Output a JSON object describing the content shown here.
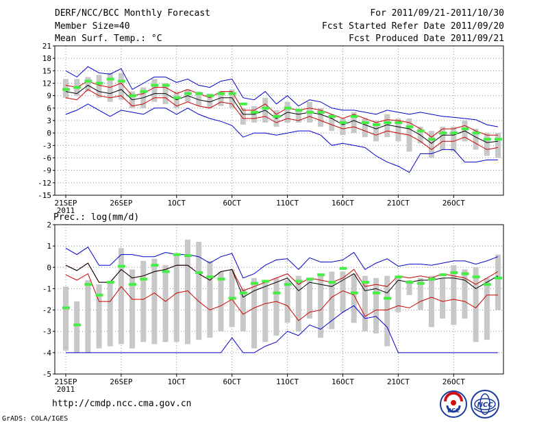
{
  "header": {
    "title": "DERF/NCC/BCC Monthly Forecast",
    "member_size": "Member Size=40",
    "variable1": "Mean Surf. Temp.: °C",
    "period": "For 2011/09/21-2011/10/30",
    "fcst_started": "Fcst Started Refer Date 2011/09/20",
    "fcst_produced": "Fcst Produced Date 2011/09/21"
  },
  "footer": {
    "url": "http://cmdp.ncc.cma.gov.cn",
    "credit": "GrADS: COLA/IGES",
    "logo_left": "BCC",
    "logo_right": "NCC"
  },
  "colors": {
    "envelope": "#0000cc",
    "spread": "#cc0000",
    "mean": "#000000",
    "box": "#c8c8c8",
    "obs": "#44ee44",
    "grid": "#888888"
  },
  "chart_data": [
    {
      "type": "line",
      "title": "Mean Surf. Temp.: °C",
      "ylim": [
        -15,
        21
      ],
      "yticks": [
        "21",
        "18",
        "15",
        "12",
        "9",
        "6",
        "3",
        "0",
        "-3",
        "-6",
        "-9",
        "-12",
        "-15"
      ],
      "x_tick_labels": [
        "21SEP",
        "26SEP",
        "1OCT",
        "6OCT",
        "11OCT",
        "16OCT",
        "21OCT",
        "26OCT"
      ],
      "x_tick_days": [
        0,
        5,
        10,
        15,
        20,
        25,
        30,
        35
      ],
      "x_year_label": "2011",
      "days": 40,
      "series": [
        {
          "name": "max",
          "values": [
            15,
            13.5,
            16,
            14.5,
            14.2,
            15.5,
            10.5,
            12,
            13.5,
            13.5,
            12.2,
            13,
            11.5,
            11,
            12.5,
            13,
            8.5,
            8,
            10,
            7,
            9,
            6.5,
            8,
            7.5,
            6,
            5.5,
            5.5,
            5,
            4.5,
            5.5,
            5,
            4.5,
            5,
            4.5,
            4,
            3.8,
            3.5,
            3.2,
            2,
            1.5
          ]
        },
        {
          "name": "upper",
          "values": [
            11.5,
            11,
            12.5,
            11.5,
            11,
            12,
            9,
            9.5,
            11,
            11,
            9.5,
            10.5,
            9.5,
            8.5,
            10,
            10,
            5.5,
            5.5,
            7,
            4.5,
            6,
            5.5,
            6,
            5.5,
            4.5,
            3.5,
            4.5,
            3.5,
            2.5,
            3.2,
            3,
            2.5,
            1,
            -1,
            1,
            1,
            1.8,
            0.5,
            -0.5,
            -0.5
          ]
        },
        {
          "name": "mean",
          "values": [
            10,
            9.5,
            11.5,
            10,
            9.5,
            10.5,
            8,
            8.5,
            9.5,
            9.5,
            8,
            9,
            8,
            7.5,
            8.5,
            8.5,
            4.5,
            4.5,
            5.5,
            3.5,
            5,
            4.5,
            5,
            4.5,
            3.5,
            2,
            3,
            2,
            1,
            2,
            1.5,
            1,
            -0.5,
            -2.5,
            -0.5,
            -0.5,
            0.5,
            -1,
            -2.3,
            -2
          ]
        },
        {
          "name": "lower",
          "values": [
            8.5,
            8,
            10.5,
            9,
            8.5,
            9,
            6.5,
            7,
            8.5,
            8.5,
            6.5,
            7.5,
            6.5,
            6,
            7.5,
            7,
            3.5,
            3.5,
            4,
            2.5,
            3.5,
            3,
            4,
            3,
            2,
            1,
            1.5,
            0.5,
            -0.5,
            0.5,
            0,
            -0.5,
            -2,
            -4,
            -2,
            -2,
            -1,
            -2.5,
            -4,
            -3.5
          ]
        },
        {
          "name": "min",
          "values": [
            4.5,
            5.5,
            7,
            5.5,
            4,
            5.5,
            5,
            4.5,
            6,
            6,
            4.5,
            6,
            4.5,
            3.5,
            2.8,
            1.8,
            -1,
            0,
            0,
            -0.5,
            0,
            0.5,
            0.5,
            -0.5,
            -3,
            -2.5,
            -3,
            -3.5,
            -5.5,
            -7,
            -8,
            -9.5,
            -5,
            -5,
            -4,
            -4,
            -7,
            -7,
            -6.5,
            -6.5
          ]
        },
        {
          "name": "box_top",
          "values": [
            13,
            13,
            13.5,
            14,
            14.5,
            14.5,
            10,
            11,
            13,
            12,
            10,
            10.5,
            10,
            9.5,
            10,
            10.5,
            6,
            6.5,
            8.5,
            5.5,
            7.5,
            5.5,
            7.5,
            6,
            4.5,
            3.5,
            5,
            3.5,
            3,
            4.5,
            3.5,
            3.5,
            1.5,
            0.5,
            1.5,
            1.5,
            3,
            1,
            0,
            0
          ]
        },
        {
          "name": "box_bottom",
          "values": [
            8.5,
            9,
            10,
            8.5,
            7.5,
            8,
            6,
            6,
            7.5,
            7,
            6,
            7.5,
            6.5,
            6,
            6.5,
            6,
            2,
            2.5,
            2.5,
            1.5,
            2.5,
            2.5,
            2.5,
            1.5,
            0.5,
            -0.5,
            0,
            -1,
            -2,
            -1,
            -2,
            -4.5,
            -2.5,
            -6,
            -4,
            -4.5,
            -2,
            -4,
            -5.5,
            -6
          ]
        },
        {
          "name": "observed",
          "values": [
            10.5,
            11,
            12.5,
            12,
            13,
            12.5,
            9,
            10,
            11.5,
            11.5,
            8.5,
            9.5,
            9.5,
            9,
            9.5,
            9.5,
            7,
            5,
            6,
            4,
            6,
            5.5,
            5,
            5,
            4,
            2.5,
            4,
            2.5,
            2,
            2.5,
            2.5,
            1.5,
            0.5,
            -1.5,
            0,
            0,
            1,
            0,
            -1.5,
            -1.5
          ]
        }
      ]
    },
    {
      "type": "line",
      "title": "Prec.: log(mm/d)",
      "ylim": [
        -5,
        2
      ],
      "yticks": [
        "2",
        "1",
        "0",
        "-1",
        "-2",
        "-3",
        "-4",
        "-5"
      ],
      "x_tick_labels": [
        "21SEP",
        "26SEP",
        "1OCT",
        "6OCT",
        "11OCT",
        "16OCT",
        "21OCT",
        "26OCT"
      ],
      "x_tick_days": [
        0,
        5,
        10,
        15,
        20,
        25,
        30,
        35
      ],
      "x_year_label": "2011",
      "days": 40,
      "series": [
        {
          "name": "max",
          "values": [
            0.9,
            0.6,
            0.95,
            0.1,
            0.1,
            0.6,
            0.6,
            0.5,
            0.5,
            0.7,
            0.6,
            0.6,
            0.5,
            0.2,
            0.5,
            0.65,
            -0.5,
            -0.3,
            0.1,
            0.35,
            0.4,
            -0.1,
            0.45,
            0.25,
            0.25,
            0.35,
            0.7,
            -0.1,
            0.2,
            0.4,
            0.05,
            0.15,
            0.15,
            0.1,
            0.2,
            0.3,
            0.3,
            0.15,
            0.3,
            0.5
          ]
        },
        {
          "name": "upper",
          "values": [
            0.1,
            -0.15,
            0.2,
            -0.7,
            -0.7,
            -0.1,
            -0.5,
            -0.4,
            -0.2,
            -0.1,
            0.1,
            0.1,
            -0.3,
            -0.6,
            -0.2,
            -0.1,
            -1.1,
            -0.9,
            -0.7,
            -0.5,
            -0.3,
            -0.8,
            -0.5,
            -0.6,
            -0.7,
            -0.5,
            -0.1,
            -0.9,
            -0.8,
            -0.9,
            -0.4,
            -0.5,
            -0.4,
            -0.5,
            -0.3,
            -0.4,
            -0.5,
            -0.8,
            -0.5,
            -0.2
          ]
        },
        {
          "name": "mean",
          "values": [
            0.1,
            -0.15,
            0.2,
            -0.7,
            -0.7,
            -0.1,
            -0.5,
            -0.4,
            -0.2,
            -0.1,
            0.1,
            0.1,
            -0.3,
            -0.6,
            -0.2,
            -0.1,
            -1.4,
            -1.1,
            -0.9,
            -0.7,
            -0.5,
            -1.1,
            -0.7,
            -0.8,
            -0.9,
            -0.6,
            -0.3,
            -1.1,
            -1.0,
            -1.2,
            -0.6,
            -0.7,
            -0.6,
            -0.6,
            -0.5,
            -0.5,
            -0.6,
            -1.0,
            -0.7,
            -0.4
          ]
        },
        {
          "name": "lower",
          "values": [
            -0.35,
            -0.6,
            -0.3,
            -1.6,
            -1.6,
            -0.9,
            -1.5,
            -1.5,
            -1.2,
            -1.6,
            -1.2,
            -1.1,
            -1.6,
            -2.0,
            -1.8,
            -1.5,
            -2.2,
            -1.9,
            -1.7,
            -1.6,
            -1.8,
            -2.5,
            -2.1,
            -2.0,
            -1.4,
            -1.1,
            -1.3,
            -2.3,
            -2.0,
            -2.0,
            -1.8,
            -1.9,
            -1.6,
            -1.4,
            -1.6,
            -1.5,
            -1.6,
            -1.9,
            -1.3,
            -1.3
          ]
        },
        {
          "name": "min",
          "values": [
            -4,
            -4,
            -4,
            -4,
            -4,
            -4,
            -4,
            -4,
            -4,
            -4,
            -4,
            -4,
            -4,
            -4,
            -4,
            -3.3,
            -4,
            -4,
            -3.7,
            -3.5,
            -3.0,
            -3.2,
            -2.7,
            -2.9,
            -2.5,
            -2.1,
            -1.8,
            -2.4,
            -2.3,
            -2.8,
            -4,
            -4,
            -4,
            -4,
            -4,
            -4,
            -4,
            -4,
            -4,
            -4
          ]
        },
        {
          "name": "box_top",
          "values": [
            -0.9,
            -1.6,
            -0.6,
            -0.8,
            -0.7,
            0.9,
            -0.1,
            0.3,
            0.4,
            0.1,
            0.6,
            1.3,
            1.2,
            0.3,
            -0.2,
            -0.1,
            -1.0,
            -0.5,
            -0.7,
            -0.5,
            -0.6,
            -0.4,
            -0.5,
            -0.4,
            -0.2,
            -0.2,
            -0.3,
            -0.4,
            -0.5,
            -0.4,
            -0.5,
            -0.6,
            -0.5,
            -0.4,
            -0.5,
            0.1,
            -0.1,
            0.0,
            -0.5,
            0.6
          ]
        },
        {
          "name": "box_bottom",
          "values": [
            -3.9,
            -4,
            -4,
            -3.8,
            -3.7,
            -3.6,
            -3.8,
            -3.5,
            -3.6,
            -3.5,
            -3.5,
            -3.6,
            -3.4,
            -3.3,
            -3.0,
            -2.8,
            -3.0,
            -3.8,
            -3.5,
            -3.2,
            -2.6,
            -3.0,
            -2.4,
            -3.3,
            -2.9,
            -2.1,
            -2.6,
            -3.0,
            -3.1,
            -3.7,
            -2.1,
            -1.3,
            -2.0,
            -2.8,
            -2.4,
            -2.7,
            -2.4,
            -3.5,
            -3.4,
            -2.0
          ]
        },
        {
          "name": "observed",
          "values": [
            -1.9,
            -2.7,
            -0.8,
            -1.3,
            -0.7,
            0.05,
            -0.8,
            -0.55,
            0.1,
            -0.2,
            0.6,
            0.55,
            -0.25,
            -0.45,
            -0.55,
            -1.45,
            -1.2,
            -0.75,
            -0.65,
            -1.2,
            -0.8,
            -0.65,
            -0.55,
            -0.35,
            -0.7,
            -0.05,
            -1.2,
            -0.7,
            -1.2,
            -1.45,
            -0.45,
            -0.7,
            -0.75,
            -0.55,
            -0.35,
            -0.25,
            -0.3,
            -0.45,
            -0.8,
            -0.5
          ]
        }
      ]
    }
  ]
}
